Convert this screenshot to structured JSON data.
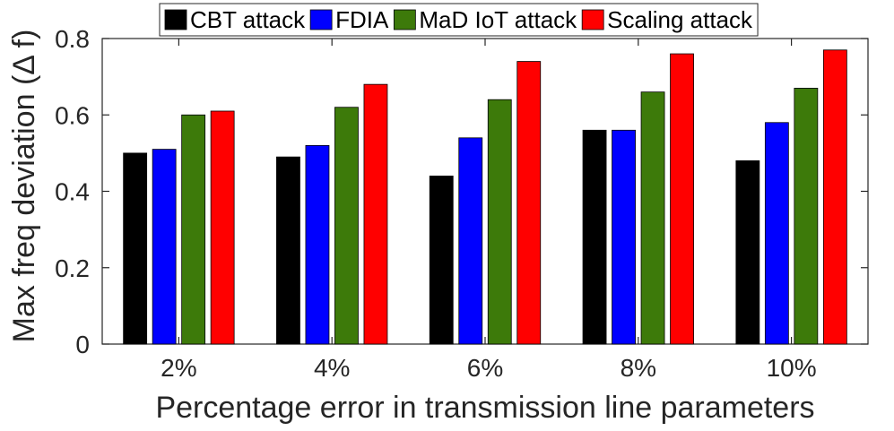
{
  "chart_data": {
    "type": "bar",
    "xlabel": "Percentage error in transmission line parameters",
    "ylabel": "Max freq deviation (Δ f)",
    "categories": [
      "2%",
      "4%",
      "6%",
      "8%",
      "10%"
    ],
    "ylim": [
      0,
      0.8
    ],
    "yticks": [
      "0",
      "0.2",
      "0.4",
      "0.6",
      "0.8"
    ],
    "grid": false,
    "legend_position": "top",
    "series": [
      {
        "name": "CBT attack",
        "color": "#000000",
        "values": [
          0.5,
          0.49,
          0.44,
          0.56,
          0.48
        ]
      },
      {
        "name": "FDIA",
        "color": "#0000ff",
        "values": [
          0.51,
          0.52,
          0.54,
          0.56,
          0.58
        ]
      },
      {
        "name": "MaD IoT attack",
        "color": "#3d7a0a",
        "values": [
          0.6,
          0.62,
          0.64,
          0.66,
          0.67
        ]
      },
      {
        "name": "Scaling attack",
        "color": "#ff0000",
        "values": [
          0.61,
          0.68,
          0.74,
          0.76,
          0.77
        ]
      }
    ]
  }
}
